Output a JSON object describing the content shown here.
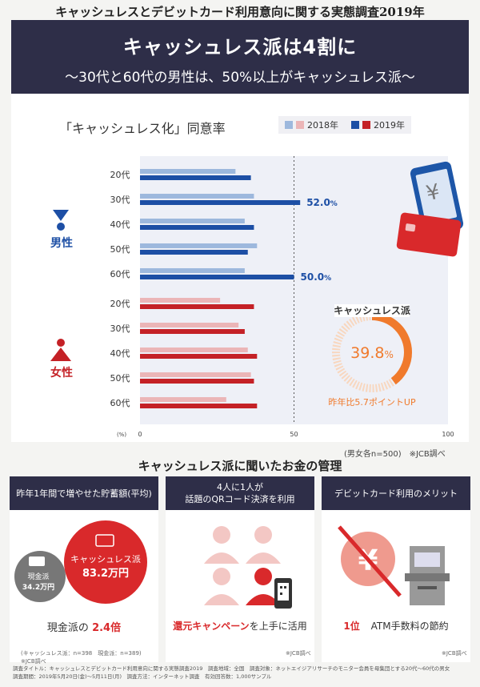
{
  "header": {
    "top_title": "キャッシュレスとデビットカード利用意向に関する実態調査2019年",
    "banner_title": "キャッシュレス派は4割に",
    "banner_subtitle": "～30代と60代の男性は、50%以上がキャッシュレス派～"
  },
  "colors": {
    "male_2018": "#9db8dd",
    "male_2019": "#1d4fa5",
    "female_2018": "#ebb5b7",
    "female_2019": "#c42126",
    "navy": "#2e2e48",
    "orange": "#f07a2c"
  },
  "chart_data": {
    "type": "bar",
    "orientation": "horizontal",
    "title": "「キャッシュレス化」同意率",
    "xlim": [
      0,
      100
    ],
    "x_ticks": [
      0,
      50,
      100
    ],
    "x_unit_label": "(%)",
    "reference_line": 50,
    "groups": [
      {
        "name": "男性",
        "categories": [
          "20代",
          "30代",
          "40代",
          "50代",
          "60代"
        ],
        "series": [
          {
            "name": "2018年",
            "values": [
              31,
              37,
              34,
              38,
              34
            ]
          },
          {
            "name": "2019年",
            "values": [
              36,
              52.0,
              37,
              35,
              50.0
            ]
          }
        ]
      },
      {
        "name": "女性",
        "categories": [
          "20代",
          "30代",
          "40代",
          "50代",
          "60代"
        ],
        "series": [
          {
            "name": "2018年",
            "values": [
              26,
              32,
              35,
              36,
              28
            ]
          },
          {
            "name": "2019年",
            "values": [
              37,
              34,
              38,
              37,
              38
            ]
          }
        ]
      }
    ],
    "data_labels": [
      {
        "text": "52.0",
        "unit": "%"
      },
      {
        "text": "50.0",
        "unit": "%"
      }
    ],
    "legend": {
      "labels": [
        "2018年",
        "2019年"
      ],
      "position": "top-right"
    }
  },
  "donut": {
    "title": "キャッシュレス派",
    "value": 39.8,
    "value_text": "39.8",
    "unit": "%",
    "caption": "昨年比5.7ポイントUP"
  },
  "sample_note": "(男女各n=500)　※JCB調べ",
  "section2": {
    "title": "キャッシュレス派に聞いたお金の管理",
    "cards": [
      {
        "head_lines": [
          "昨年1年間で増やせた貯蓄額(平均)"
        ],
        "big_circle_title": "キャッシュレス派",
        "big_circle_value": "83.2万円",
        "small_circle_title": "現金派",
        "small_circle_value": "34.2万円",
        "foot_prefix": "現金派の",
        "foot_highlight": "2.4倍",
        "note": "(キャッシュレス派：n=398　現金派：n=389)　※JCB調べ"
      },
      {
        "head_lines": [
          "4人に1人が",
          "話題のQRコード決済を利用"
        ],
        "foot_highlight": "還元キャンペーン",
        "foot_suffix": "を上手に活用",
        "note": "※JCB調べ"
      },
      {
        "head_lines": [
          "デビットカード利用のメリット"
        ],
        "foot_highlight": "1位",
        "foot_suffix": "ATM手数料の節約",
        "note": "※JCB調べ"
      }
    ]
  },
  "survey_lines": [
    "調査タイトル：キャッシュレスとデビットカード利用意向に関する実態調査2019　調査地域：全国　調査対象：ネットエイジアリサーチのモニター会員を母集団とする20代〜60代の男女",
    "調査期間：2019年5月20日(金)〜5月11日(月)　調査方法：インターネット調査　有効回答数：1,000サンプル"
  ]
}
